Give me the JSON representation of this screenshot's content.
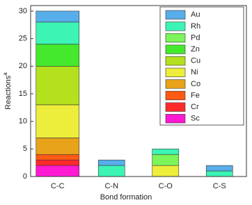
{
  "chart_data": {
    "type": "stacked-bar",
    "x_label": "Bond formation",
    "y_label": "Reactions",
    "y_label_superscript": "a",
    "categories": [
      "C-C",
      "C-N",
      "C-O",
      "C-S"
    ],
    "series": [
      {
        "name": "Sc",
        "color": "#ff19d2",
        "values": [
          2,
          0,
          0,
          0
        ]
      },
      {
        "name": "Cr",
        "color": "#ff2a2a",
        "values": [
          1,
          0,
          0,
          0
        ]
      },
      {
        "name": "Fe",
        "color": "#ff5a14",
        "values": [
          1,
          0,
          0,
          0
        ]
      },
      {
        "name": "Co",
        "color": "#e8a31a",
        "values": [
          3,
          0,
          0,
          0
        ]
      },
      {
        "name": "Ni",
        "color": "#eded3c",
        "values": [
          6,
          0,
          2,
          0
        ]
      },
      {
        "name": "Cu",
        "color": "#b4e01e",
        "values": [
          7,
          0,
          0,
          0
        ]
      },
      {
        "name": "Zn",
        "color": "#44e82c",
        "values": [
          4,
          0,
          0,
          0
        ]
      },
      {
        "name": "Pd",
        "color": "#7cf55a",
        "values": [
          0,
          0,
          2,
          0
        ]
      },
      {
        "name": "Rh",
        "color": "#3cf5b4",
        "values": [
          4,
          2,
          1,
          1
        ]
      },
      {
        "name": "Au",
        "color": "#58aeea",
        "values": [
          2,
          1,
          0,
          1
        ]
      }
    ],
    "ylim": [
      0,
      31
    ],
    "yticks": [
      0,
      5,
      10,
      15,
      20,
      25,
      30
    ],
    "legend": "upper-right"
  }
}
